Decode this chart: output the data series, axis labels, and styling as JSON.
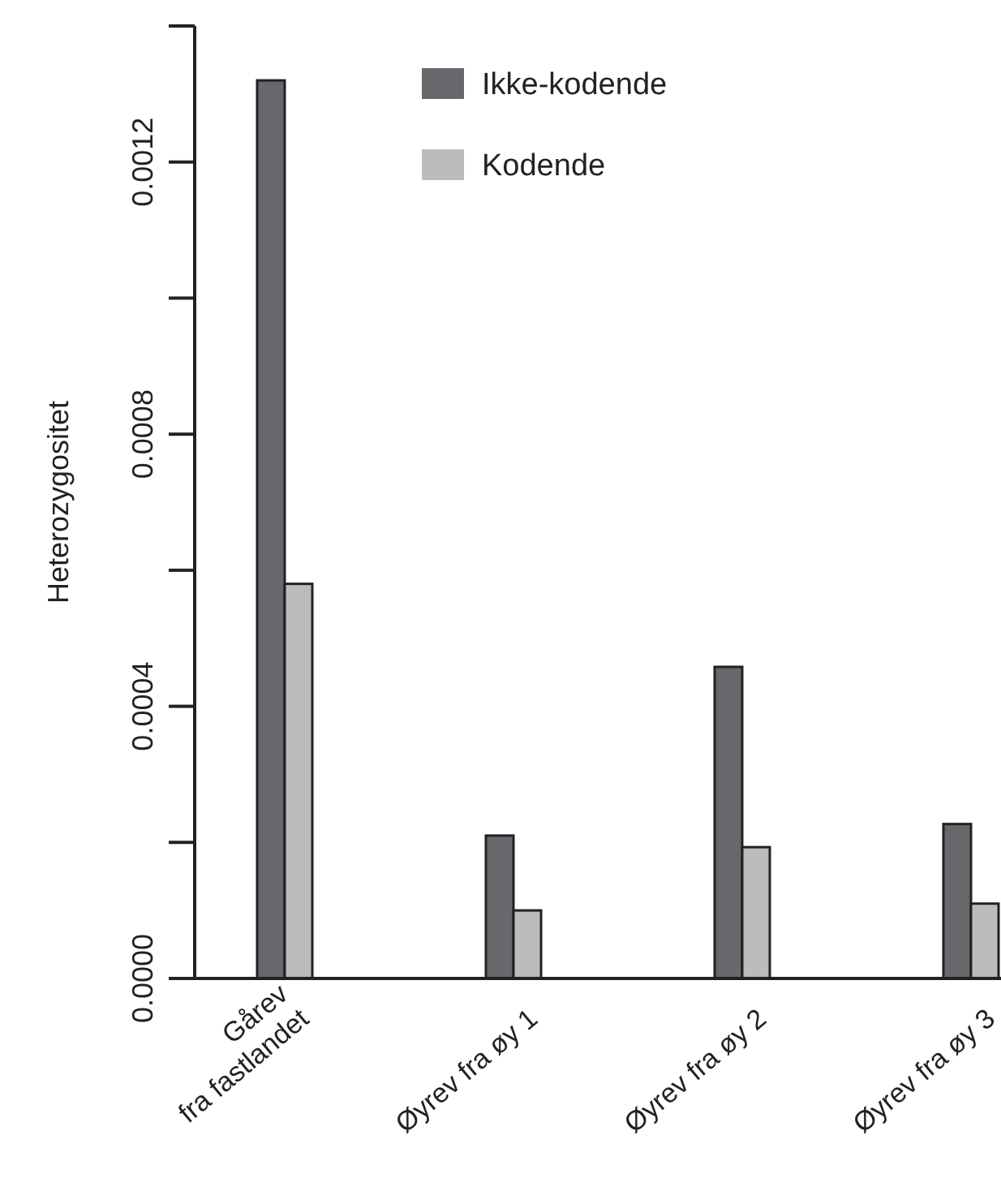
{
  "chart_data": {
    "type": "bar",
    "ylabel": "Heterozygositet",
    "categories": [
      "Gårev\nfra fastlandet",
      "Øyrev fra øy 1",
      "Øyrev fra øy 2",
      "Øyrev fra øy 3"
    ],
    "series": [
      {
        "name": "Ikke-kodende",
        "color": "#68686c",
        "values": [
          0.00132,
          0.00021,
          0.000458,
          0.000227
        ]
      },
      {
        "name": "Kodende",
        "color": "#bcbcbe",
        "values": [
          0.00058,
          0.0001,
          0.000193,
          0.00011
        ]
      }
    ],
    "ylim": [
      0,
      0.0014
    ],
    "yticks": [
      {
        "value": 0,
        "label": "0.0000"
      },
      {
        "value": 0.0002,
        "label": null
      },
      {
        "value": 0.0004,
        "label": "0.0004"
      },
      {
        "value": 0.0006,
        "label": null
      },
      {
        "value": 0.0008,
        "label": "0.0008"
      },
      {
        "value": 0.001,
        "label": null
      },
      {
        "value": 0.0012,
        "label": "0.0012"
      },
      {
        "value": 0.0014,
        "label": null
      }
    ],
    "legend": "top right",
    "grid": false
  }
}
